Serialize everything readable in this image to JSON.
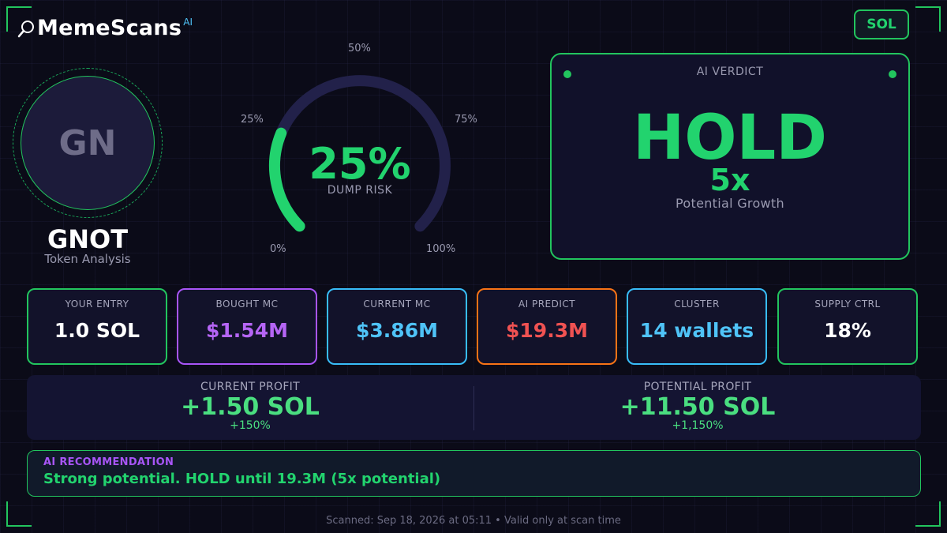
{
  "brand": {
    "name": "MemeScans",
    "superscript": "AI",
    "icon": "magnifier-icon"
  },
  "chain": {
    "label": "SOL"
  },
  "token": {
    "initials": "GN",
    "symbol": "GNOT",
    "subtitle": "Token Analysis"
  },
  "gauge": {
    "value_text": "25%",
    "value_fraction": 0.25,
    "label": "DUMP RISK",
    "ticks": [
      "0%",
      "25%",
      "50%",
      "75%",
      "100%"
    ],
    "color": "#22d36e"
  },
  "verdict": {
    "title": "AI VERDICT",
    "word": "HOLD",
    "multiplier": "5x",
    "subtitle": "Potential Growth"
  },
  "stats": [
    {
      "label": "YOUR ENTRY",
      "value": "1.0 SOL",
      "border": "#22c55e",
      "color": "#ffffff"
    },
    {
      "label": "BOUGHT MC",
      "value": "$1.54M",
      "border": "#a855f7",
      "color": "#b565f5"
    },
    {
      "label": "CURRENT MC",
      "value": "$3.86M",
      "border": "#38bdf8",
      "color": "#4fc3f7"
    },
    {
      "label": "AI PREDICT",
      "value": "$19.3M",
      "border": "#f97316",
      "color": "#f05252"
    },
    {
      "label": "CLUSTER",
      "value": "14 wallets",
      "border": "#38bdf8",
      "color": "#4fc3f7"
    },
    {
      "label": "SUPPLY CTRL",
      "value": "18%",
      "border": "#22c55e",
      "color": "#ffffff"
    }
  ],
  "profit": {
    "current": {
      "label": "CURRENT PROFIT",
      "value": "+1.50 SOL",
      "pct": "+150%"
    },
    "potential": {
      "label": "POTENTIAL PROFIT",
      "value": "+11.50 SOL",
      "pct": "+1,150%"
    }
  },
  "recommendation": {
    "label": "AI RECOMMENDATION",
    "text": "Strong potential. HOLD until 19.3M (5x potential)"
  },
  "footer": {
    "text": "Scanned: Sep 18, 2026 at 05:11  •  Valid only at scan time"
  },
  "colors": {
    "accent": "#22c55e",
    "background": "#0b0b18",
    "panel": "#12122a"
  }
}
